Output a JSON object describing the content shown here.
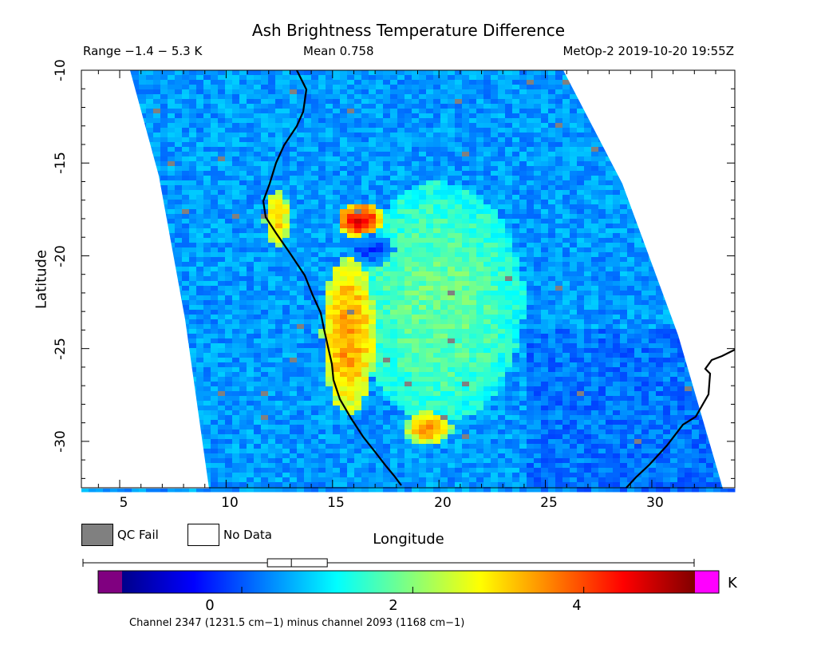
{
  "title": "Ash Brightness Temperature Difference",
  "header": {
    "range": "Range −1.4 − 5.3 K",
    "mean": "Mean 0.758",
    "satellite_time": "MetOp-2 2019-10-20 19:55Z"
  },
  "axes": {
    "xlabel": "Longitude",
    "ylabel": "Latitude",
    "xlim": [
      3.2,
      33.9
    ],
    "ylim": [
      -32.5,
      -10
    ],
    "xticks": [
      5,
      10,
      15,
      20,
      25,
      30
    ],
    "yticks": [
      -10,
      -15,
      -20,
      -25,
      -30
    ]
  },
  "legend": {
    "qc_fail": "QC Fail",
    "no_data": "No Data",
    "qc_color": "#808080"
  },
  "colorbar": {
    "min": -1.4,
    "max": 5.3,
    "ticks": [
      "0",
      "2",
      "4"
    ],
    "tick_values": [
      0,
      2,
      4
    ],
    "unit": "K",
    "under_color": "#800080",
    "over_color": "#ff00ff",
    "colors": [
      "#00008a",
      "#0000ff",
      "#0080ff",
      "#00ffff",
      "#80ff80",
      "#ffff00",
      "#ff8000",
      "#ff0000",
      "#800000"
    ],
    "box_range": [
      0.3,
      1.0
    ],
    "box_median": 0.58
  },
  "caption": "Channel 2347 (1231.5 cm−1) minus channel 2093 (1168 cm−1)",
  "chart_data": {
    "type": "heatmap",
    "title": "Ash Brightness Temperature Difference",
    "xlabel": "Longitude",
    "ylabel": "Latitude",
    "xlim": [
      3.2,
      33.9
    ],
    "ylim": [
      -32.5,
      -10
    ],
    "units": "K",
    "value_range": [
      -1.4,
      5.3
    ],
    "mean": 0.758,
    "features": [
      {
        "name": "coastal high band",
        "lon_range": [
          14.5,
          17
        ],
        "lat_range": [
          -28.5,
          -20
        ],
        "value": 3.5
      },
      {
        "name": "coastal strip",
        "lon_range": [
          11.8,
          13
        ],
        "lat_range": [
          -19.5,
          -16.5
        ],
        "value": 3.2
      },
      {
        "name": "hot spot",
        "lon": 16.3,
        "lat": -18.1,
        "value": 4.6
      },
      {
        "name": "southern high patch",
        "lon": 19.5,
        "lat": -29.3,
        "value": 3.4
      },
      {
        "name": "central plateau",
        "lon_range": [
          16,
          24
        ],
        "lat_range": [
          -29,
          -16
        ],
        "value": 1.8
      },
      {
        "name": "low pocket",
        "lon": 16.8,
        "lat": -19.7,
        "value": -0.2
      }
    ]
  }
}
